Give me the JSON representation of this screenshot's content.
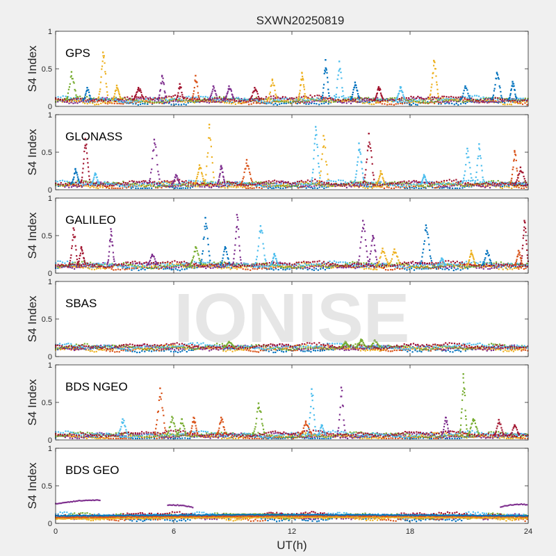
{
  "chart_data": {
    "type": "scatter",
    "title": "SXWN20250819",
    "xlabel": "UT(h)",
    "ylabel": "S4 Index",
    "xlim": [
      0,
      24
    ],
    "ylim": [
      0,
      1
    ],
    "xticks": [
      0,
      6,
      12,
      18,
      24
    ],
    "yticks": [
      0,
      0.5,
      1
    ],
    "ytick_labels": [
      "0",
      "0.5",
      "1"
    ],
    "grid": false,
    "watermark": "IONISE",
    "series_colors": [
      "#0072bd",
      "#d95319",
      "#edb120",
      "#7e2f8e",
      "#77ac30",
      "#4dbeee",
      "#a2142f"
    ],
    "panels": [
      {
        "name": "GPS",
        "baseline": 0.08,
        "spikes": [
          {
            "x": 0.8,
            "peak": 0.46,
            "c": 4
          },
          {
            "x": 1.6,
            "peak": 0.25,
            "c": 0
          },
          {
            "x": 2.4,
            "peak": 0.72,
            "c": 2
          },
          {
            "x": 3.1,
            "peak": 0.28,
            "c": 2
          },
          {
            "x": 4.2,
            "peak": 0.25,
            "c": 6
          },
          {
            "x": 5.4,
            "peak": 0.41,
            "c": 3
          },
          {
            "x": 6.3,
            "peak": 0.3,
            "c": 6
          },
          {
            "x": 7.1,
            "peak": 0.41,
            "c": 1
          },
          {
            "x": 8.0,
            "peak": 0.27,
            "c": 3
          },
          {
            "x": 8.8,
            "peak": 0.27,
            "c": 3
          },
          {
            "x": 10.1,
            "peak": 0.25,
            "c": 6
          },
          {
            "x": 11.0,
            "peak": 0.36,
            "c": 2
          },
          {
            "x": 12.5,
            "peak": 0.45,
            "c": 2
          },
          {
            "x": 13.7,
            "peak": 0.62,
            "c": 0
          },
          {
            "x": 14.4,
            "peak": 0.6,
            "c": 5
          },
          {
            "x": 15.2,
            "peak": 0.32,
            "c": 0
          },
          {
            "x": 16.4,
            "peak": 0.26,
            "c": 6
          },
          {
            "x": 17.5,
            "peak": 0.26,
            "c": 5
          },
          {
            "x": 19.2,
            "peak": 0.61,
            "c": 2
          },
          {
            "x": 20.8,
            "peak": 0.27,
            "c": 0
          },
          {
            "x": 22.4,
            "peak": 0.45,
            "c": 0
          },
          {
            "x": 23.2,
            "peak": 0.33,
            "c": 0
          }
        ]
      },
      {
        "name": "GLONASS",
        "baseline": 0.07,
        "spikes": [
          {
            "x": 1.0,
            "peak": 0.28,
            "c": 0
          },
          {
            "x": 1.5,
            "peak": 0.68,
            "c": 6
          },
          {
            "x": 2.0,
            "peak": 0.22,
            "c": 5
          },
          {
            "x": 5.0,
            "peak": 0.67,
            "c": 3
          },
          {
            "x": 6.1,
            "peak": 0.2,
            "c": 3
          },
          {
            "x": 7.3,
            "peak": 0.33,
            "c": 2
          },
          {
            "x": 7.8,
            "peak": 0.87,
            "c": 2
          },
          {
            "x": 8.4,
            "peak": 0.32,
            "c": 3
          },
          {
            "x": 9.7,
            "peak": 0.4,
            "c": 1
          },
          {
            "x": 13.2,
            "peak": 0.84,
            "c": 5
          },
          {
            "x": 13.6,
            "peak": 0.72,
            "c": 2
          },
          {
            "x": 15.4,
            "peak": 0.62,
            "c": 5
          },
          {
            "x": 15.9,
            "peak": 0.75,
            "c": 6
          },
          {
            "x": 16.5,
            "peak": 0.25,
            "c": 2
          },
          {
            "x": 18.7,
            "peak": 0.2,
            "c": 5
          },
          {
            "x": 20.9,
            "peak": 0.55,
            "c": 5
          },
          {
            "x": 21.5,
            "peak": 0.61,
            "c": 5
          },
          {
            "x": 23.3,
            "peak": 0.52,
            "c": 1
          },
          {
            "x": 23.6,
            "peak": 0.3,
            "c": 6
          }
        ]
      },
      {
        "name": "GALILEO",
        "baseline": 0.1,
        "spikes": [
          {
            "x": 0.9,
            "peak": 0.6,
            "c": 6
          },
          {
            "x": 1.3,
            "peak": 0.35,
            "c": 6
          },
          {
            "x": 2.8,
            "peak": 0.59,
            "c": 3
          },
          {
            "x": 4.9,
            "peak": 0.25,
            "c": 3
          },
          {
            "x": 7.1,
            "peak": 0.35,
            "c": 4
          },
          {
            "x": 7.6,
            "peak": 0.74,
            "c": 0
          },
          {
            "x": 8.6,
            "peak": 0.35,
            "c": 0
          },
          {
            "x": 9.2,
            "peak": 0.78,
            "c": 3
          },
          {
            "x": 10.4,
            "peak": 0.63,
            "c": 5
          },
          {
            "x": 11.1,
            "peak": 0.26,
            "c": 5
          },
          {
            "x": 15.6,
            "peak": 0.7,
            "c": 3
          },
          {
            "x": 16.1,
            "peak": 0.5,
            "c": 3
          },
          {
            "x": 16.6,
            "peak": 0.33,
            "c": 2
          },
          {
            "x": 17.2,
            "peak": 0.32,
            "c": 2
          },
          {
            "x": 18.8,
            "peak": 0.64,
            "c": 0
          },
          {
            "x": 19.6,
            "peak": 0.2,
            "c": 5
          },
          {
            "x": 21.1,
            "peak": 0.3,
            "c": 2
          },
          {
            "x": 21.9,
            "peak": 0.3,
            "c": 0
          },
          {
            "x": 23.8,
            "peak": 0.7,
            "c": 6
          },
          {
            "x": 23.5,
            "peak": 0.3,
            "c": 1
          }
        ]
      },
      {
        "name": "SBAS",
        "baseline": 0.12,
        "spikes": [
          {
            "x": 8.8,
            "peak": 0.2,
            "c": 4
          },
          {
            "x": 14.7,
            "peak": 0.2,
            "c": 4
          },
          {
            "x": 15.5,
            "peak": 0.23,
            "c": 4
          },
          {
            "x": 16.2,
            "peak": 0.22,
            "c": 4
          }
        ]
      },
      {
        "name": "BDS NGEO",
        "baseline": 0.06,
        "spikes": [
          {
            "x": 3.4,
            "peak": 0.28,
            "c": 5
          },
          {
            "x": 5.3,
            "peak": 0.69,
            "c": 1
          },
          {
            "x": 5.9,
            "peak": 0.31,
            "c": 4
          },
          {
            "x": 6.4,
            "peak": 0.28,
            "c": 4
          },
          {
            "x": 7.0,
            "peak": 0.3,
            "c": 1
          },
          {
            "x": 8.4,
            "peak": 0.3,
            "c": 1
          },
          {
            "x": 10.3,
            "peak": 0.49,
            "c": 4
          },
          {
            "x": 12.7,
            "peak": 0.25,
            "c": 1
          },
          {
            "x": 13.0,
            "peak": 0.68,
            "c": 5
          },
          {
            "x": 13.5,
            "peak": 0.2,
            "c": 5
          },
          {
            "x": 14.5,
            "peak": 0.7,
            "c": 3
          },
          {
            "x": 19.8,
            "peak": 0.3,
            "c": 3
          },
          {
            "x": 20.7,
            "peak": 0.88,
            "c": 4
          },
          {
            "x": 21.2,
            "peak": 0.28,
            "c": 4
          },
          {
            "x": 22.5,
            "peak": 0.27,
            "c": 6
          },
          {
            "x": 23.3,
            "peak": 0.2,
            "c": 6
          }
        ]
      },
      {
        "name": "BDS GEO",
        "baseline": 0.09,
        "spikes": [],
        "segments": [
          {
            "x0": 0.0,
            "x1": 2.3,
            "y0": 0.26,
            "y1": 0.31,
            "c": 3
          },
          {
            "x0": 5.7,
            "x1": 7.0,
            "y0": 0.24,
            "y1": 0.21,
            "c": 3
          },
          {
            "x0": 8.0,
            "x1": 13.5,
            "y0": 0.11,
            "y1": 0.1,
            "c": 4
          },
          {
            "x0": 22.6,
            "x1": 24.0,
            "y0": 0.22,
            "y1": 0.25,
            "c": 3
          },
          {
            "x0": 0.0,
            "x1": 24.0,
            "y0": 0.06,
            "y1": 0.07,
            "c": 2
          },
          {
            "x0": 0.0,
            "x1": 24.0,
            "y0": 0.08,
            "y1": 0.09,
            "c": 1
          },
          {
            "x0": 0.0,
            "x1": 24.0,
            "y0": 0.1,
            "y1": 0.1,
            "c": 0
          }
        ]
      }
    ]
  }
}
